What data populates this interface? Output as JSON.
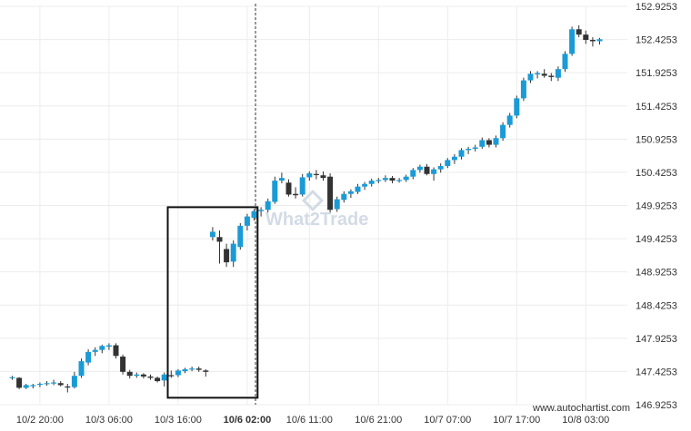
{
  "chart_data": {
    "type": "candlestick",
    "y_ticks": [
      "152.9253",
      "152.4253",
      "151.9253",
      "151.4253",
      "150.9253",
      "150.4253",
      "149.9253",
      "149.4253",
      "148.9253",
      "148.4253",
      "147.9253",
      "147.4253",
      "146.9253"
    ],
    "ylim": [
      146.9253,
      152.9253
    ],
    "x_ticks": [
      {
        "label": "10/2 20:00",
        "bar": 4,
        "bold": false
      },
      {
        "label": "10/3 06:00",
        "bar": 14,
        "bold": false
      },
      {
        "label": "10/3 16:00",
        "bar": 24,
        "bold": false
      },
      {
        "label": "10/6 02:00",
        "bar": 34,
        "bold": true
      },
      {
        "label": "10/6 11:00",
        "bar": 43,
        "bold": false
      },
      {
        "label": "10/6 21:00",
        "bar": 53,
        "bold": false
      },
      {
        "label": "10/7 07:00",
        "bar": 63,
        "bold": false
      },
      {
        "label": "10/7 17:00",
        "bar": 73,
        "bold": false
      },
      {
        "label": "10/8 03:00",
        "bar": 83,
        "bold": false
      }
    ],
    "grid": true,
    "pattern_box": {
      "bar_start": 22.5,
      "bar_end": 35.5,
      "y_top": 149.9,
      "y_bottom": 147.03
    },
    "marker_line_bar": 35.2,
    "candles": [
      {
        "o": 147.33,
        "h": 147.36,
        "l": 147.3,
        "c": 147.34,
        "color": "teal"
      },
      {
        "o": 147.33,
        "h": 147.34,
        "l": 147.16,
        "c": 147.18,
        "color": "black"
      },
      {
        "o": 147.18,
        "h": 147.24,
        "l": 147.16,
        "c": 147.22,
        "color": "teal"
      },
      {
        "o": 147.21,
        "h": 147.24,
        "l": 147.17,
        "c": 147.22,
        "color": "teal"
      },
      {
        "o": 147.23,
        "h": 147.26,
        "l": 147.19,
        "c": 147.24,
        "color": "teal"
      },
      {
        "o": 147.24,
        "h": 147.28,
        "l": 147.21,
        "c": 147.25,
        "color": "teal"
      },
      {
        "o": 147.25,
        "h": 147.3,
        "l": 147.22,
        "c": 147.26,
        "color": "teal"
      },
      {
        "o": 147.25,
        "h": 147.28,
        "l": 147.2,
        "c": 147.22,
        "color": "black"
      },
      {
        "o": 147.2,
        "h": 147.24,
        "l": 147.11,
        "c": 147.19,
        "color": "black"
      },
      {
        "o": 147.19,
        "h": 147.42,
        "l": 147.17,
        "c": 147.36,
        "color": "teal"
      },
      {
        "o": 147.36,
        "h": 147.62,
        "l": 147.33,
        "c": 147.58,
        "color": "teal"
      },
      {
        "o": 147.56,
        "h": 147.76,
        "l": 147.52,
        "c": 147.72,
        "color": "teal"
      },
      {
        "o": 147.72,
        "h": 147.79,
        "l": 147.66,
        "c": 147.75,
        "color": "teal"
      },
      {
        "o": 147.75,
        "h": 147.83,
        "l": 147.7,
        "c": 147.81,
        "color": "teal"
      },
      {
        "o": 147.8,
        "h": 147.85,
        "l": 147.75,
        "c": 147.82,
        "color": "teal"
      },
      {
        "o": 147.82,
        "h": 147.85,
        "l": 147.62,
        "c": 147.66,
        "color": "black"
      },
      {
        "o": 147.65,
        "h": 147.68,
        "l": 147.38,
        "c": 147.42,
        "color": "black"
      },
      {
        "o": 147.42,
        "h": 147.45,
        "l": 147.32,
        "c": 147.36,
        "color": "black"
      },
      {
        "o": 147.36,
        "h": 147.41,
        "l": 147.33,
        "c": 147.38,
        "color": "teal"
      },
      {
        "o": 147.38,
        "h": 147.4,
        "l": 147.32,
        "c": 147.35,
        "color": "black"
      },
      {
        "o": 147.35,
        "h": 147.38,
        "l": 147.3,
        "c": 147.33,
        "color": "black"
      },
      {
        "o": 147.33,
        "h": 147.35,
        "l": 147.26,
        "c": 147.28,
        "color": "black"
      },
      {
        "o": 147.29,
        "h": 147.41,
        "l": 147.2,
        "c": 147.38,
        "color": "teal"
      },
      {
        "o": 147.37,
        "h": 147.44,
        "l": 147.33,
        "c": 147.36,
        "color": "black"
      },
      {
        "o": 147.37,
        "h": 147.46,
        "l": 147.34,
        "c": 147.44,
        "color": "teal"
      },
      {
        "o": 147.43,
        "h": 147.48,
        "l": 147.4,
        "c": 147.46,
        "color": "teal"
      },
      {
        "o": 147.46,
        "h": 147.5,
        "l": 147.43,
        "c": 147.47,
        "color": "teal"
      },
      {
        "o": 147.47,
        "h": 147.5,
        "l": 147.42,
        "c": 147.45,
        "color": "black"
      },
      {
        "o": 147.44,
        "h": 147.46,
        "l": 147.35,
        "c": 147.42,
        "color": "black"
      },
      {
        "o": 149.45,
        "h": 149.6,
        "l": 149.4,
        "c": 149.53,
        "color": "teal"
      },
      {
        "o": 149.45,
        "h": 149.55,
        "l": 149.05,
        "c": 149.38,
        "color": "black"
      },
      {
        "o": 149.27,
        "h": 149.35,
        "l": 149.0,
        "c": 149.07,
        "color": "black"
      },
      {
        "o": 149.08,
        "h": 149.4,
        "l": 149.0,
        "c": 149.35,
        "color": "teal"
      },
      {
        "o": 149.3,
        "h": 149.66,
        "l": 149.26,
        "c": 149.62,
        "color": "teal"
      },
      {
        "o": 149.62,
        "h": 149.8,
        "l": 149.55,
        "c": 149.76,
        "color": "teal"
      },
      {
        "o": 149.74,
        "h": 149.87,
        "l": 149.7,
        "c": 149.84,
        "color": "teal"
      },
      {
        "o": 149.84,
        "h": 149.9,
        "l": 149.76,
        "c": 149.86,
        "color": "teal"
      },
      {
        "o": 149.86,
        "h": 150.03,
        "l": 149.82,
        "c": 149.99,
        "color": "teal"
      },
      {
        "o": 149.98,
        "h": 150.36,
        "l": 149.95,
        "c": 150.3,
        "color": "teal"
      },
      {
        "o": 150.3,
        "h": 150.42,
        "l": 150.26,
        "c": 150.34,
        "color": "teal"
      },
      {
        "o": 150.27,
        "h": 150.32,
        "l": 150.06,
        "c": 150.09,
        "color": "black"
      },
      {
        "o": 150.1,
        "h": 150.2,
        "l": 150.03,
        "c": 150.08,
        "color": "black"
      },
      {
        "o": 150.09,
        "h": 150.4,
        "l": 150.06,
        "c": 150.35,
        "color": "teal"
      },
      {
        "o": 150.35,
        "h": 150.44,
        "l": 150.3,
        "c": 150.41,
        "color": "teal"
      },
      {
        "o": 150.4,
        "h": 150.46,
        "l": 150.32,
        "c": 150.39,
        "color": "black"
      },
      {
        "o": 150.38,
        "h": 150.44,
        "l": 150.3,
        "c": 150.34,
        "color": "black"
      },
      {
        "o": 150.36,
        "h": 150.41,
        "l": 149.82,
        "c": 149.86,
        "color": "black"
      },
      {
        "o": 149.87,
        "h": 150.06,
        "l": 149.83,
        "c": 150.02,
        "color": "teal"
      },
      {
        "o": 150.01,
        "h": 150.14,
        "l": 149.97,
        "c": 150.1,
        "color": "teal"
      },
      {
        "o": 150.1,
        "h": 150.17,
        "l": 150.04,
        "c": 150.14,
        "color": "teal"
      },
      {
        "o": 150.13,
        "h": 150.25,
        "l": 150.1,
        "c": 150.21,
        "color": "teal"
      },
      {
        "o": 150.21,
        "h": 150.28,
        "l": 150.16,
        "c": 150.25,
        "color": "teal"
      },
      {
        "o": 150.25,
        "h": 150.33,
        "l": 150.21,
        "c": 150.3,
        "color": "teal"
      },
      {
        "o": 150.3,
        "h": 150.34,
        "l": 150.26,
        "c": 150.31,
        "color": "teal"
      },
      {
        "o": 150.31,
        "h": 150.38,
        "l": 150.28,
        "c": 150.34,
        "color": "teal"
      },
      {
        "o": 150.34,
        "h": 150.37,
        "l": 150.26,
        "c": 150.3,
        "color": "black"
      },
      {
        "o": 150.3,
        "h": 150.34,
        "l": 150.27,
        "c": 150.31,
        "color": "teal"
      },
      {
        "o": 150.31,
        "h": 150.39,
        "l": 150.28,
        "c": 150.36,
        "color": "teal"
      },
      {
        "o": 150.36,
        "h": 150.49,
        "l": 150.32,
        "c": 150.46,
        "color": "teal"
      },
      {
        "o": 150.46,
        "h": 150.54,
        "l": 150.42,
        "c": 150.51,
        "color": "teal"
      },
      {
        "o": 150.51,
        "h": 150.55,
        "l": 150.38,
        "c": 150.4,
        "color": "black"
      },
      {
        "o": 150.4,
        "h": 150.5,
        "l": 150.3,
        "c": 150.47,
        "color": "teal"
      },
      {
        "o": 150.47,
        "h": 150.56,
        "l": 150.42,
        "c": 150.52,
        "color": "teal"
      },
      {
        "o": 150.52,
        "h": 150.64,
        "l": 150.49,
        "c": 150.61,
        "color": "teal"
      },
      {
        "o": 150.61,
        "h": 150.7,
        "l": 150.55,
        "c": 150.66,
        "color": "teal"
      },
      {
        "o": 150.66,
        "h": 150.79,
        "l": 150.62,
        "c": 150.76,
        "color": "teal"
      },
      {
        "o": 150.76,
        "h": 150.81,
        "l": 150.7,
        "c": 150.78,
        "color": "teal"
      },
      {
        "o": 150.78,
        "h": 150.84,
        "l": 150.74,
        "c": 150.8,
        "color": "teal"
      },
      {
        "o": 150.81,
        "h": 150.95,
        "l": 150.78,
        "c": 150.91,
        "color": "teal"
      },
      {
        "o": 150.91,
        "h": 150.94,
        "l": 150.8,
        "c": 150.84,
        "color": "black"
      },
      {
        "o": 150.84,
        "h": 150.98,
        "l": 150.8,
        "c": 150.94,
        "color": "teal"
      },
      {
        "o": 150.94,
        "h": 151.18,
        "l": 150.9,
        "c": 151.14,
        "color": "teal"
      },
      {
        "o": 151.14,
        "h": 151.32,
        "l": 151.1,
        "c": 151.28,
        "color": "teal"
      },
      {
        "o": 151.28,
        "h": 151.58,
        "l": 151.24,
        "c": 151.54,
        "color": "teal"
      },
      {
        "o": 151.54,
        "h": 151.85,
        "l": 151.5,
        "c": 151.81,
        "color": "teal"
      },
      {
        "o": 151.81,
        "h": 151.95,
        "l": 151.77,
        "c": 151.91,
        "color": "teal"
      },
      {
        "o": 151.9,
        "h": 151.95,
        "l": 151.84,
        "c": 151.92,
        "color": "teal"
      },
      {
        "o": 151.91,
        "h": 151.98,
        "l": 151.85,
        "c": 151.88,
        "color": "black"
      },
      {
        "o": 151.88,
        "h": 151.92,
        "l": 151.8,
        "c": 151.86,
        "color": "black"
      },
      {
        "o": 151.85,
        "h": 152.02,
        "l": 151.8,
        "c": 151.98,
        "color": "teal"
      },
      {
        "o": 151.98,
        "h": 152.25,
        "l": 151.94,
        "c": 152.21,
        "color": "teal"
      },
      {
        "o": 152.21,
        "h": 152.62,
        "l": 152.18,
        "c": 152.58,
        "color": "teal"
      },
      {
        "o": 152.58,
        "h": 152.64,
        "l": 152.46,
        "c": 152.5,
        "color": "black"
      },
      {
        "o": 152.5,
        "h": 152.56,
        "l": 152.36,
        "c": 152.42,
        "color": "black"
      },
      {
        "o": 152.42,
        "h": 152.46,
        "l": 152.32,
        "c": 152.4,
        "color": "black"
      },
      {
        "o": 152.4,
        "h": 152.45,
        "l": 152.35,
        "c": 152.43,
        "color": "teal"
      }
    ]
  },
  "colors": {
    "up": "#1a9bd7",
    "down": "#333333",
    "grid": "#ececec",
    "box": "#111111"
  },
  "watermark": "What2Trade",
  "footer_text": "www.autochartist.com"
}
